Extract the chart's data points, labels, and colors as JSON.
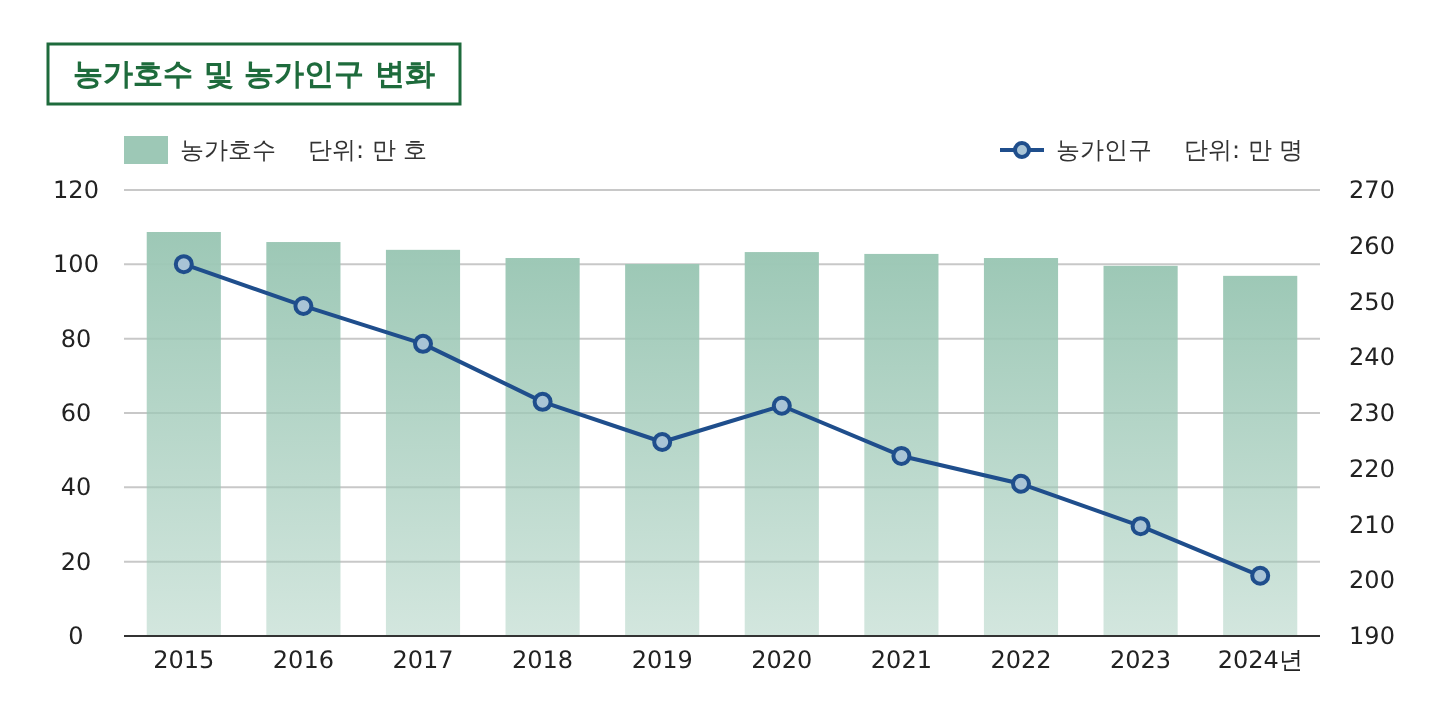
{
  "chart_data": {
    "type": "bar",
    "title": "농가호수 및 농가인구 변화",
    "ylabel": "단위: 만 호",
    "y2label": "단위: 만 명",
    "categories": [
      "2015",
      "2016",
      "2017",
      "2018",
      "2019",
      "2020",
      "2021",
      "2022",
      "2023",
      "2024년"
    ],
    "series": [
      {
        "name": "농가호수",
        "color": "#9dc8b6",
        "values": [
          108.7,
          106.0,
          103.9,
          101.7,
          100.1,
          103.3,
          102.8,
          101.7,
          99.6,
          96.9
        ]
      },
      {
        "name": "농가인구",
        "type": "line",
        "axis": "y2",
        "color": "#1f4e8c",
        "marker": "circle",
        "values": [
          256.7,
          249.2,
          242.4,
          232.0,
          224.8,
          231.3,
          222.3,
          217.3,
          209.7,
          200.8
        ]
      }
    ],
    "ylim": [
      0,
      120
    ],
    "yticks": [
      0,
      20,
      40,
      60,
      80,
      100,
      120
    ],
    "y2lim": [
      190,
      270
    ],
    "y2ticks": [
      190,
      200,
      210,
      220,
      230,
      240,
      250,
      260,
      270
    ],
    "grid": "y",
    "legend": "top"
  }
}
